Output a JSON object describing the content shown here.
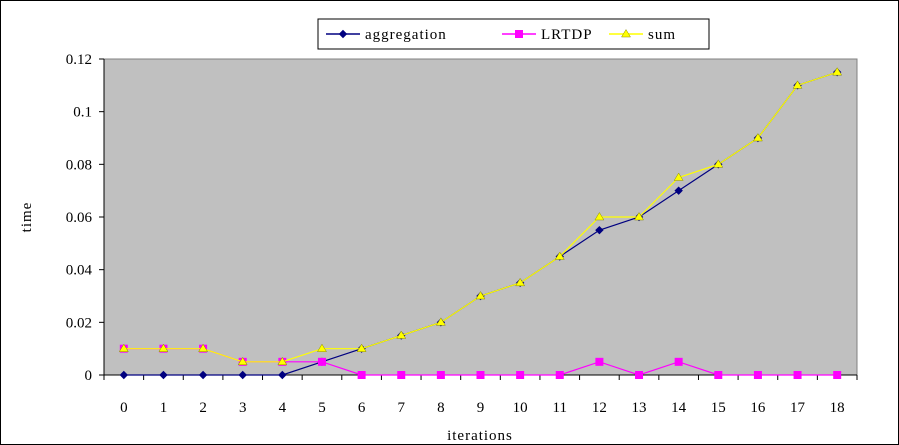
{
  "chart_data": {
    "type": "line",
    "categories": [
      "0",
      "1",
      "2",
      "3",
      "4",
      "5",
      "6",
      "7",
      "8",
      "9",
      "10",
      "11",
      "12",
      "13",
      "14",
      "15",
      "16",
      "17",
      "18"
    ],
    "xlabel": "iterations",
    "ylabel": "time",
    "ylim": [
      0,
      0.12
    ],
    "yticks": [
      "0",
      "0.02",
      "0.04",
      "0.06",
      "0.08",
      "0.1",
      "0.12"
    ],
    "grid": false,
    "legend_position": "top-center",
    "plot_background": "#c0c0c0",
    "series": [
      {
        "name": "aggregation",
        "color": "#000080",
        "marker": "diamond",
        "values": [
          0,
          0,
          0,
          0,
          0,
          0.005,
          0.01,
          0.015,
          0.02,
          0.03,
          0.035,
          0.045,
          0.055,
          0.06,
          0.07,
          0.08,
          0.09,
          0.11,
          0.115
        ]
      },
      {
        "name": "LRTDP",
        "color": "#ff00ff",
        "marker": "square",
        "values": [
          0.01,
          0.01,
          0.01,
          0.005,
          0.005,
          0.005,
          0,
          0,
          0,
          0,
          0,
          0,
          0.005,
          0,
          0.005,
          0,
          0,
          0,
          0
        ]
      },
      {
        "name": "sum",
        "color": "#ffff00",
        "marker": "triangle",
        "values": [
          0.01,
          0.01,
          0.01,
          0.005,
          0.005,
          0.01,
          0.01,
          0.015,
          0.02,
          0.03,
          0.035,
          0.045,
          0.06,
          0.06,
          0.075,
          0.08,
          0.09,
          0.11,
          0.115
        ]
      }
    ]
  }
}
